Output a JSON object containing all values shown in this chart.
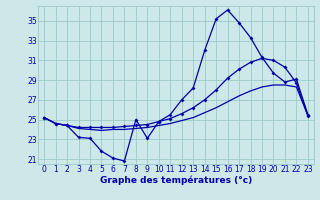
{
  "xlabel": "Graphe des températures (°c)",
  "background_color": "#cce8e8",
  "grid_color": "#9ec8c8",
  "line_color": "#0000aa",
  "ylim": [
    20.5,
    36.5
  ],
  "xlim": [
    -0.5,
    23.5
  ],
  "yticks": [
    21,
    23,
    25,
    27,
    29,
    31,
    33,
    35
  ],
  "xticks": [
    0,
    1,
    2,
    3,
    4,
    5,
    6,
    7,
    8,
    9,
    10,
    11,
    12,
    13,
    14,
    15,
    16,
    17,
    18,
    19,
    20,
    21,
    22,
    23
  ],
  "curve1_x": [
    0,
    1,
    2,
    3,
    4,
    5,
    6,
    7,
    8,
    9,
    10,
    11,
    12,
    13,
    14,
    15,
    16,
    17,
    18,
    19,
    20,
    21,
    22,
    23
  ],
  "curve1_y": [
    25.2,
    24.6,
    24.4,
    23.2,
    23.1,
    21.8,
    21.1,
    20.8,
    25.0,
    23.1,
    24.8,
    25.5,
    27.0,
    28.2,
    32.0,
    35.2,
    36.1,
    34.8,
    33.3,
    31.3,
    29.7,
    28.8,
    29.1,
    25.5
  ],
  "curve2_x": [
    0,
    1,
    2,
    3,
    4,
    5,
    6,
    7,
    8,
    9,
    10,
    11,
    12,
    13,
    14,
    15,
    16,
    17,
    18,
    19,
    20,
    21,
    22,
    23
  ],
  "curve2_y": [
    25.2,
    24.6,
    24.4,
    24.2,
    24.2,
    24.2,
    24.2,
    24.3,
    24.4,
    24.5,
    24.8,
    25.1,
    25.6,
    26.2,
    27.0,
    28.0,
    29.2,
    30.1,
    30.8,
    31.2,
    31.0,
    30.3,
    28.7,
    25.4
  ],
  "curve3_x": [
    0,
    1,
    2,
    3,
    4,
    5,
    6,
    7,
    8,
    9,
    10,
    11,
    12,
    13,
    14,
    15,
    16,
    17,
    18,
    19,
    20,
    21,
    22,
    23
  ],
  "curve3_y": [
    25.2,
    24.6,
    24.4,
    24.1,
    24.0,
    23.9,
    24.0,
    24.0,
    24.1,
    24.2,
    24.4,
    24.6,
    24.9,
    25.2,
    25.7,
    26.2,
    26.8,
    27.4,
    27.9,
    28.3,
    28.5,
    28.5,
    28.3,
    25.4
  ],
  "tick_fontsize": 5.5,
  "xlabel_fontsize": 6.5
}
